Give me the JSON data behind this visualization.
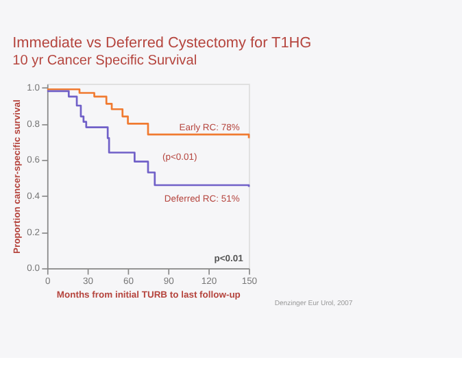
{
  "chart_data": {
    "type": "step",
    "title": "Immediate vs Deferred Cystectomy for T1HG",
    "subtitle": "10 yr Cancer Specific Survival",
    "xlabel": "Months from initial TURB to last follow-up",
    "ylabel": "Proportion cancer-specific survival",
    "xlim": [
      0,
      150
    ],
    "xticks": [
      0,
      30,
      60,
      90,
      120,
      150
    ],
    "ylim": [
      0,
      1.02
    ],
    "yticks": [
      {
        "value": 0,
        "label": "0.0"
      },
      {
        "value": 0.2,
        "label": "0.2"
      },
      {
        "value": 0.4,
        "label": "0.4"
      },
      {
        "value": 0.6,
        "label": "0.6"
      },
      {
        "value": 0.8,
        "label": "0.8"
      },
      {
        "value": 1,
        "label": "1.0"
      }
    ],
    "grid": false,
    "series": [
      {
        "name": "Early RC: 78%",
        "color": "#f07a30",
        "x": [
          0,
          18,
          24,
          35,
          44,
          48,
          56,
          60,
          75,
          150
        ],
        "values": [
          0.99,
          0.99,
          0.97,
          0.95,
          0.91,
          0.88,
          0.84,
          0.8,
          0.74,
          0.72
        ]
      },
      {
        "name": "Deferred RC: 51%",
        "color": "#7060c8",
        "x": [
          0,
          16,
          22,
          25,
          27,
          29,
          45,
          46,
          65,
          75,
          80,
          150
        ],
        "values": [
          0.98,
          0.95,
          0.9,
          0.84,
          0.81,
          0.78,
          0.72,
          0.64,
          0.59,
          0.53,
          0.46,
          0.45
        ]
      }
    ],
    "annotations": [
      "(p<0.01)",
      "p<0.01",
      "Denzinger Eur Urol, 2007"
    ]
  }
}
